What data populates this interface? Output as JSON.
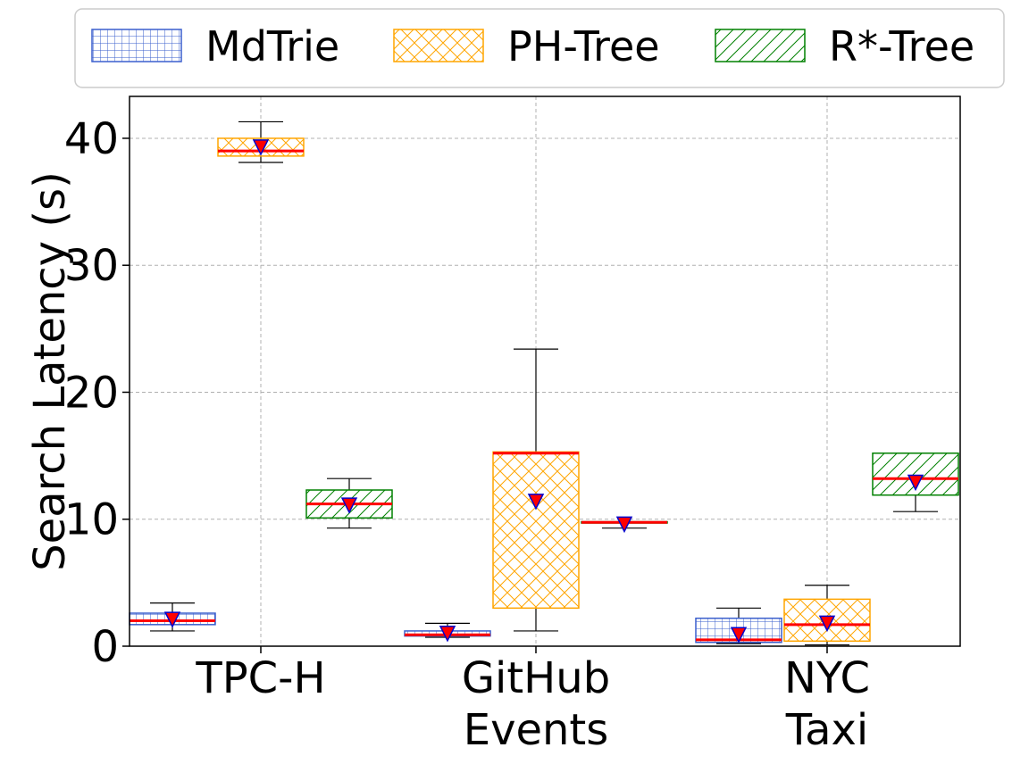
{
  "colors": {
    "mdtrie": "#3a5fcd",
    "phtree": "#ffa500",
    "rtree": "#008000",
    "median": "#ff0000",
    "mean_fill": "#ff0000",
    "mean_edge": "#0000cd",
    "grid": "#b0b0b0"
  },
  "chart_data": {
    "type": "box",
    "ylabel": "Search Latency (s)",
    "ylim": [
      0,
      43.3
    ],
    "yticks": [
      0,
      10,
      20,
      30,
      40
    ],
    "grid": true,
    "legend_placement": "top, outside plot",
    "categories": [
      [
        "TPC-H"
      ],
      [
        "GitHub",
        "Events"
      ],
      [
        "NYC",
        "Taxi"
      ]
    ],
    "series": [
      {
        "name": "MdTrie",
        "color": "#3a5fcd",
        "hatch": "grid",
        "boxes": [
          {
            "whislo": 1.2,
            "q1": 1.7,
            "med": 2.0,
            "q3": 2.6,
            "whishi": 3.4,
            "mean": 2.1
          },
          {
            "whislo": 0.7,
            "q1": 0.8,
            "med": 0.9,
            "q3": 1.2,
            "whishi": 1.8,
            "mean": 1.0
          },
          {
            "whislo": 0.2,
            "q1": 0.3,
            "med": 0.5,
            "q3": 2.2,
            "whishi": 3.0,
            "mean": 0.9
          }
        ]
      },
      {
        "name": "PH-Tree",
        "color": "#ffa500",
        "hatch": "cross",
        "boxes": [
          {
            "whislo": 38.1,
            "q1": 38.6,
            "med": 39.0,
            "q3": 40.0,
            "whishi": 41.3,
            "mean": 39.3
          },
          {
            "whislo": 1.2,
            "q1": 3.0,
            "med": 15.2,
            "q3": 15.3,
            "whishi": 23.4,
            "mean": 11.4
          },
          {
            "whislo": 0.1,
            "q1": 0.4,
            "med": 1.7,
            "q3": 3.7,
            "whishi": 4.8,
            "mean": 1.8
          }
        ]
      },
      {
        "name": "R*-Tree",
        "color": "#008000",
        "hatch": "diagonal",
        "boxes": [
          {
            "whislo": 9.3,
            "q1": 10.1,
            "med": 11.2,
            "q3": 12.3,
            "whishi": 13.2,
            "mean": 11.1
          },
          {
            "whislo": 9.3,
            "q1": 9.7,
            "med": 9.75,
            "q3": 9.8,
            "whishi": 9.8,
            "mean": 9.6
          },
          {
            "whislo": 10.6,
            "q1": 11.9,
            "med": 13.2,
            "q3": 15.2,
            "whishi": 15.2,
            "mean": 12.9
          }
        ]
      }
    ]
  }
}
